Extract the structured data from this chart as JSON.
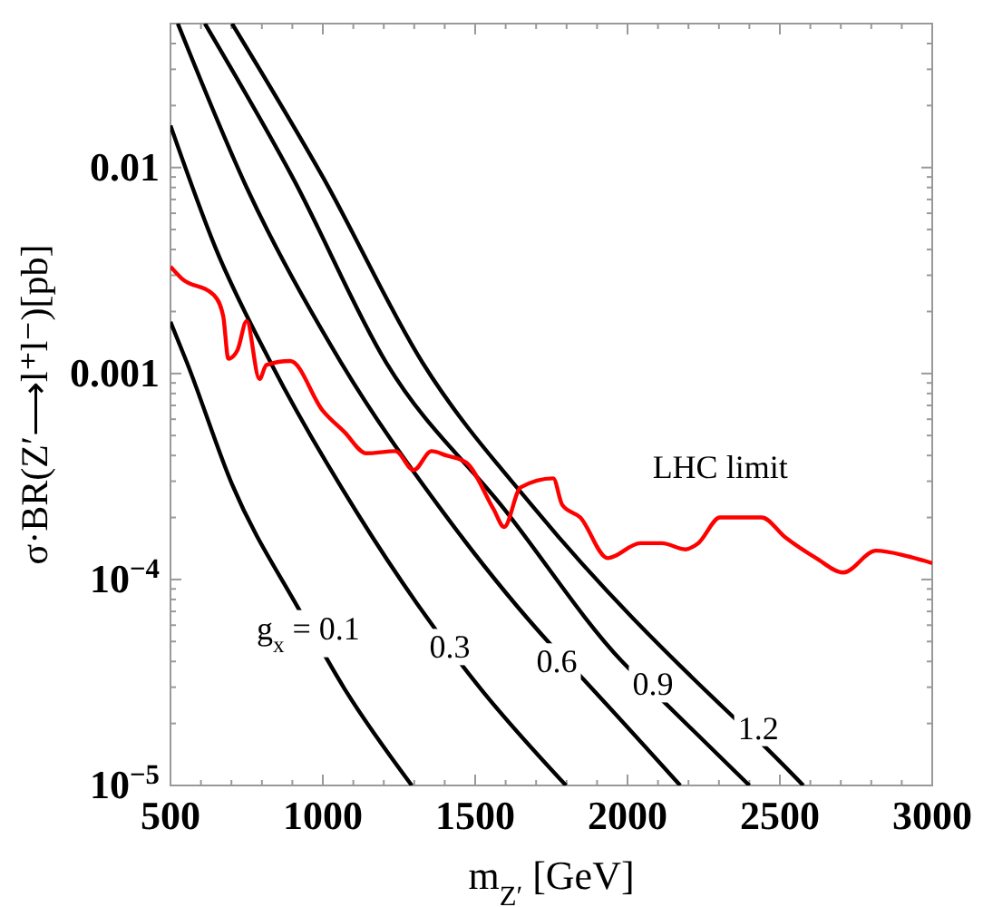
{
  "chart_data": {
    "type": "line",
    "xlabel": "m$_{Z′}$ [GeV]",
    "ylabel": "σ·BR(Z′⟶l⁺l⁻)[pb]",
    "log": "y",
    "grid": false,
    "marker": "none",
    "line_style": "solid",
    "xlim": [
      500,
      3000
    ],
    "ylim": [
      1e-05,
      0.05
    ],
    "xticks": [
      500,
      {
        "value": 600,
        "label": null
      },
      {
        "value": 700,
        "label": null
      },
      {
        "value": 800,
        "label": null
      },
      {
        "value": 900,
        "label": null
      },
      1000,
      {
        "value": 1100,
        "label": null
      },
      {
        "value": 1200,
        "label": null
      },
      {
        "value": 1300,
        "label": null
      },
      {
        "value": 1400,
        "label": null
      },
      1500,
      {
        "value": 1600,
        "label": null
      },
      {
        "value": 1700,
        "label": null
      },
      {
        "value": 1800,
        "label": null
      },
      {
        "value": 1900,
        "label": null
      },
      2000,
      {
        "value": 2100,
        "label": null
      },
      {
        "value": 2200,
        "label": null
      },
      {
        "value": 2300,
        "label": null
      },
      {
        "value": 2400,
        "label": null
      },
      2500,
      {
        "value": 2600,
        "label": null
      },
      {
        "value": 2700,
        "label": null
      },
      {
        "value": 2800,
        "label": null
      },
      {
        "value": 2900,
        "label": null
      },
      3000
    ],
    "yticks": [
      {
        "value": 1e-05,
        "label": "10$^{−5}$"
      },
      {
        "value": 2e-05,
        "label": null
      },
      {
        "value": 3e-05,
        "label": null
      },
      {
        "value": 4e-05,
        "label": null
      },
      {
        "value": 5e-05,
        "label": null
      },
      {
        "value": 6e-05,
        "label": null
      },
      {
        "value": 7e-05,
        "label": null
      },
      {
        "value": 8e-05,
        "label": null
      },
      {
        "value": 9e-05,
        "label": null
      },
      {
        "value": 0.0001,
        "label": "10$^{−4}$"
      },
      {
        "value": 0.0002,
        "label": null
      },
      {
        "value": 0.0003,
        "label": null
      },
      {
        "value": 0.0004,
        "label": null
      },
      {
        "value": 0.0005,
        "label": null
      },
      {
        "value": 0.0006,
        "label": null
      },
      {
        "value": 0.0007,
        "label": null
      },
      {
        "value": 0.0008,
        "label": null
      },
      {
        "value": 0.0009,
        "label": null
      },
      {
        "value": 0.001,
        "label": "0.001"
      },
      {
        "value": 0.002,
        "label": null
      },
      {
        "value": 0.003,
        "label": null
      },
      {
        "value": 0.004,
        "label": null
      },
      {
        "value": 0.005,
        "label": null
      },
      {
        "value": 0.006,
        "label": null
      },
      {
        "value": 0.007,
        "label": null
      },
      {
        "value": 0.008,
        "label": null
      },
      {
        "value": 0.009,
        "label": null
      },
      {
        "value": 0.01,
        "label": "0.01"
      },
      {
        "value": 0.02,
        "label": null
      },
      {
        "value": 0.03,
        "label": null
      },
      {
        "value": 0.04,
        "label": null
      }
    ],
    "series": [
      {
        "color": "#000000",
        "x": [
          500,
          554,
          702,
          923,
          1071,
          1292
        ],
        "values": [
          0.00178,
          0.00113,
          0.00029,
          7.1e-05,
          2.95e-05,
          1e-05
        ]
      },
      {
        "color": "#000000",
        "x": [
          500,
          650,
          833,
          1113,
          1310,
          1506,
          1798
        ],
        "values": [
          0.016,
          0.004,
          0.0011,
          0.00021,
          7.6e-05,
          3.1e-05,
          1e-05
        ]
      },
      {
        "color": "#000000",
        "x": [
          524,
          750,
          1060,
          1387,
          1744,
          1845,
          2173
        ],
        "values": [
          0.05,
          0.008,
          0.00113,
          0.00022,
          4.9e-05,
          3.4e-05,
          1e-05
        ]
      },
      {
        "color": "#000000",
        "x": [
          613,
          900,
          1208,
          1595,
          1982,
          2125,
          2400
        ],
        "values": [
          0.05,
          0.009,
          0.00113,
          0.00022,
          4e-05,
          2.5e-05,
          1e-05
        ]
      },
      {
        "color": "#000000",
        "x": [
          702,
          1000,
          1327,
          1696,
          2340,
          2440,
          2577
        ],
        "values": [
          0.05,
          0.009,
          0.00113,
          0.00022,
          2.2e-05,
          1.6e-05,
          1e-05
        ]
      },
      {
        "name": "LHC limit",
        "color": "#ff0000",
        "x": [
          500,
          536,
          643,
          673,
          690,
          720,
          750,
          792,
          815,
          893,
          1000,
          1071,
          1143,
          1238,
          1298,
          1357,
          1405,
          1470,
          1560,
          1595,
          1649,
          1756,
          1786,
          1845,
          1935,
          2042,
          2113,
          2190,
          2232,
          2304,
          2440,
          2518,
          2619,
          2708,
          2815,
          2917,
          3000
        ],
        "values": [
          0.0033,
          0.0029,
          0.0024,
          0.0019,
          0.00118,
          0.0013,
          0.0018,
          0.00094,
          0.0011,
          0.00115,
          0.00066,
          0.00052,
          0.00041,
          0.00042,
          0.00034,
          0.00042,
          0.0004,
          0.00037,
          0.00022,
          0.00018,
          0.00028,
          0.00031,
          0.00023,
          0.0002,
          0.000127,
          0.00015,
          0.00015,
          0.00014,
          0.00015,
          0.0002,
          0.0002,
          0.00016,
          0.000127,
          0.000108,
          0.000138,
          0.00013,
          0.00012
        ]
      }
    ],
    "annotations": [
      {
        "text": "g$_{x}$ = 0.1",
        "x": 952,
        "y": 5.8e-05
      },
      {
        "text": "0.3",
        "x": 1417,
        "y": 4.7e-05
      },
      {
        "text": "0.6",
        "x": 1768,
        "y": 4e-05
      },
      {
        "text": "0.9",
        "x": 2083,
        "y": 3.1e-05
      },
      {
        "text": "1.2",
        "x": 2429,
        "y": 1.9e-05
      }
    ]
  }
}
